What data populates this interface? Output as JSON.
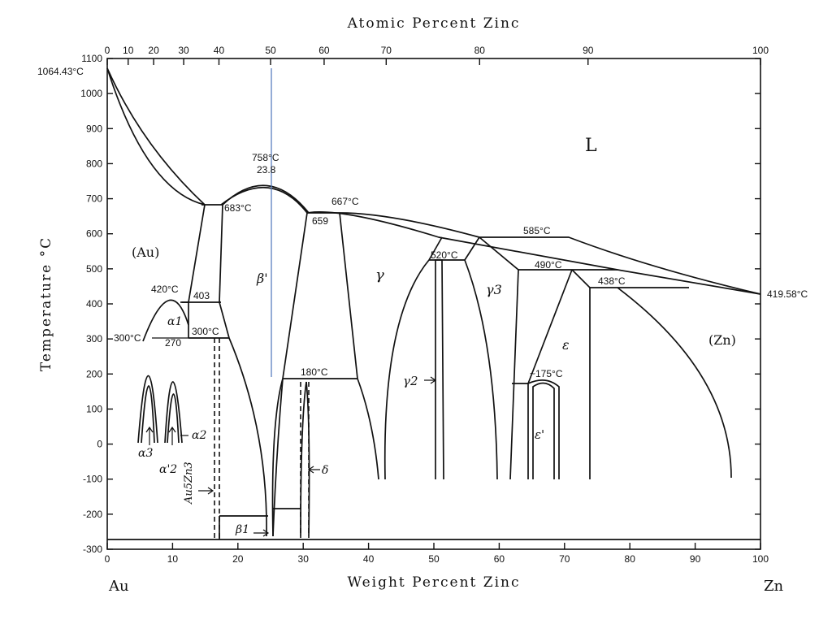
{
  "top_axis": {
    "title": "Atomic Percent Zinc",
    "ticks": [
      "0",
      "10",
      "20",
      "30",
      "40",
      "50",
      "60",
      "70",
      "80",
      "90",
      "100"
    ]
  },
  "y_axis": {
    "title": "Temperature °C",
    "ticks": [
      "1100",
      "1000",
      "900",
      "800",
      "700",
      "600",
      "500",
      "400",
      "300",
      "200",
      "100",
      "0",
      "-100",
      "-200",
      "-300"
    ]
  },
  "x_axis": {
    "title": "Weight Percent Zinc",
    "ticks": [
      "0",
      "10",
      "20",
      "30",
      "40",
      "50",
      "60",
      "70",
      "80",
      "90",
      "100"
    ],
    "left_end": "Au",
    "right_end": "Zn"
  },
  "temperatures": {
    "au_melt": "1064.43°C",
    "zn_melt": "419.58°C",
    "max": "758°C",
    "max_comp": "23.8",
    "t683": "683°C",
    "t667": "667°C",
    "t659": "659",
    "t585": "585°C",
    "t520": "520°C",
    "t490": "490°C",
    "t438": "438°C",
    "t420": "420°C",
    "t403": "403",
    "t300a": "300°C",
    "t270": "270",
    "t300b": "300°C",
    "t180": "180°C",
    "t175": "~175°C"
  },
  "phases": {
    "liquid": "L",
    "au": "(Au)",
    "zn": "(Zn)",
    "beta_prime": "β'",
    "gamma": "γ",
    "gamma2": "γ2",
    "gamma3": "γ3",
    "epsilon": "ε",
    "epsilon_prime": "ε'",
    "alpha1": "α1",
    "alpha2": "α2",
    "alpha3": "α3",
    "alpha2_prime": "α'2",
    "au5zn3": "Au5Zn3",
    "beta1": "β1",
    "delta": "δ"
  },
  "chart_data": {
    "type": "phase-diagram",
    "system": [
      "Au",
      "Zn"
    ],
    "x_range_wt_pct": [
      0,
      100
    ],
    "x_range_at_pct": [
      0,
      100
    ],
    "y_range_c": [
      -300,
      1100
    ],
    "invariants": [
      {
        "label": "1064.43°C",
        "x_wt": 0,
        "t": 1064.43
      },
      {
        "label": "758°C",
        "x_wt": 23.8,
        "t": 758
      },
      {
        "label": "683°C",
        "x_wt": 17,
        "t": 683
      },
      {
        "label": "667°C",
        "x_wt": 35,
        "t": 667
      },
      {
        "label": "659",
        "x_wt": 31,
        "t": 659
      },
      {
        "label": "585°C",
        "x_wt": 57,
        "t": 585
      },
      {
        "label": "520°C",
        "x_wt": 51,
        "t": 520
      },
      {
        "label": "490°C",
        "x_wt": 67,
        "t": 490
      },
      {
        "label": "438°C",
        "x_wt": 74,
        "t": 438
      },
      {
        "label": "420°C",
        "x_wt": 10,
        "t": 420
      },
      {
        "label": "403",
        "x_wt": 14,
        "t": 403
      },
      {
        "label": "300°C",
        "x_wt": 7,
        "t": 300
      },
      {
        "label": "270",
        "x_wt": 10,
        "t": 270
      },
      {
        "label": "300°C",
        "x_wt": 16,
        "t": 300
      },
      {
        "label": "180°C",
        "x_wt": 30,
        "t": 180
      },
      {
        "label": "~175°C",
        "x_wt": 66,
        "t": 175
      },
      {
        "label": "419.58°C",
        "x_wt": 100,
        "t": 419.58
      }
    ]
  }
}
